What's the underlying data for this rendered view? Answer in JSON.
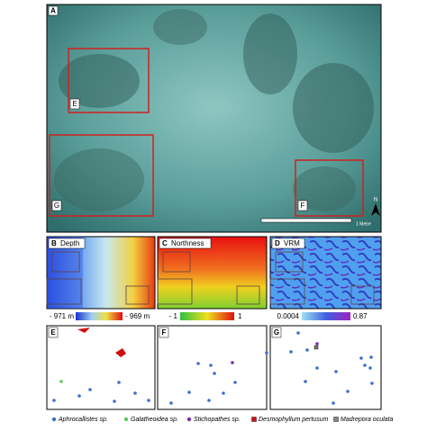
{
  "panels": {
    "a": {
      "letter": "A",
      "insets": [
        "E",
        "G",
        "F"
      ],
      "scale_bar": "1 Metre",
      "north": "N"
    },
    "b": {
      "letter": "B",
      "title": "Depth",
      "colorbar_min": "- 971 m",
      "colorbar_max": "- 969 m"
    },
    "c": {
      "letter": "C",
      "title": "Northness",
      "colorbar_min": "- 1",
      "colorbar_max": "1"
    },
    "d": {
      "letter": "D",
      "title": "VRM",
      "colorbar_min": "0.0004",
      "colorbar_max": "0.87"
    },
    "e": {
      "letter": "E"
    },
    "f": {
      "letter": "F"
    },
    "g": {
      "letter": "G"
    }
  },
  "legend": [
    "Aphrocallistes sp.",
    "Galatheoidea sp.",
    "Stichopathes sp.",
    "Desmophyllum pertusum",
    "Madrepora oculata"
  ]
}
